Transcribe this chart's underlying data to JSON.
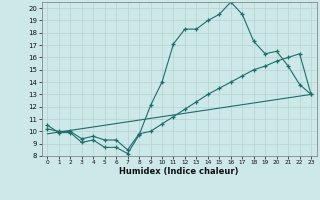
{
  "title": "",
  "xlabel": "Humidex (Indice chaleur)",
  "xlim": [
    -0.5,
    23.5
  ],
  "ylim": [
    8,
    20.5
  ],
  "yticks": [
    8,
    9,
    10,
    11,
    12,
    13,
    14,
    15,
    16,
    17,
    18,
    19,
    20
  ],
  "xticks": [
    0,
    1,
    2,
    3,
    4,
    5,
    6,
    7,
    8,
    9,
    10,
    11,
    12,
    13,
    14,
    15,
    16,
    17,
    18,
    19,
    20,
    21,
    22,
    23
  ],
  "bg_color": "#cce8e8",
  "line_color": "#1a6e6a",
  "series1_x": [
    0,
    1,
    2,
    3,
    4,
    5,
    6,
    7,
    8,
    9,
    10,
    11,
    12,
    13,
    14,
    15,
    16,
    17,
    18,
    19,
    20,
    21,
    22,
    23
  ],
  "series1_y": [
    10.5,
    9.9,
    9.9,
    9.1,
    9.3,
    8.7,
    8.7,
    8.2,
    9.7,
    12.1,
    14.0,
    17.1,
    18.3,
    18.3,
    19.0,
    19.5,
    20.5,
    19.5,
    17.3,
    16.3,
    16.5,
    15.3,
    13.8,
    13.0
  ],
  "series2_x": [
    0,
    1,
    2,
    3,
    4,
    5,
    6,
    7,
    8,
    9,
    10,
    11,
    12,
    13,
    14,
    15,
    16,
    17,
    18,
    19,
    20,
    21,
    22,
    23
  ],
  "series2_y": [
    10.2,
    10.0,
    10.0,
    9.4,
    9.6,
    9.3,
    9.3,
    8.5,
    9.8,
    10.0,
    10.6,
    11.2,
    11.8,
    12.4,
    13.0,
    13.5,
    14.0,
    14.5,
    15.0,
    15.3,
    15.7,
    16.0,
    16.3,
    13.0
  ],
  "series3_x": [
    0,
    23
  ],
  "series3_y": [
    9.8,
    13.0
  ]
}
